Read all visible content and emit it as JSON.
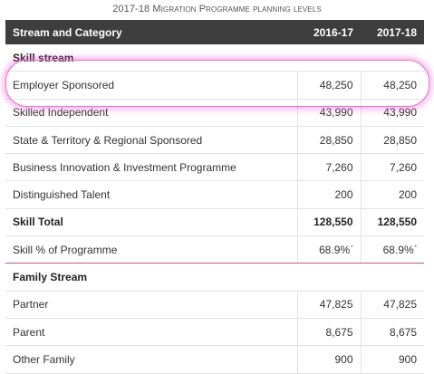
{
  "caption": {
    "year": "2017-18",
    "title": "Migration Programme planning levels"
  },
  "headers": {
    "category": "Stream and Category",
    "col1": "2016-17",
    "col2": "2017-18"
  },
  "skill_section": "Skill stream",
  "rows_skill": [
    {
      "label": "Employer Sponsored",
      "v1": "48,250",
      "v2": "48,250"
    },
    {
      "label": "Skilled Independent",
      "v1": "43,990",
      "v2": "43,990"
    },
    {
      "label": "State & Territory & Regional Sponsored",
      "v1": "28,850",
      "v2": "28,850"
    },
    {
      "label": "Business Innovation & Investment Programme",
      "v1": "7,260",
      "v2": "7,260"
    },
    {
      "label": "Distinguished Talent",
      "v1": "200",
      "v2": "200"
    }
  ],
  "skill_total": {
    "label": "Skill Total",
    "v1": "128,550",
    "v2": "128,550"
  },
  "skill_pct": {
    "label": "Skill % of Programme",
    "v1": "68.9%",
    "v2": "68.9%",
    "mark": "*"
  },
  "family_section": "Family Stream",
  "rows_family": [
    {
      "label": "Partner",
      "v1": "47,825",
      "v2": "47,825"
    },
    {
      "label": "Parent",
      "v1": "8,675",
      "v2": "8,675"
    },
    {
      "label": "Other Family",
      "v1": "900",
      "v2": "900"
    }
  ],
  "highlight_color": "#e86fd4"
}
